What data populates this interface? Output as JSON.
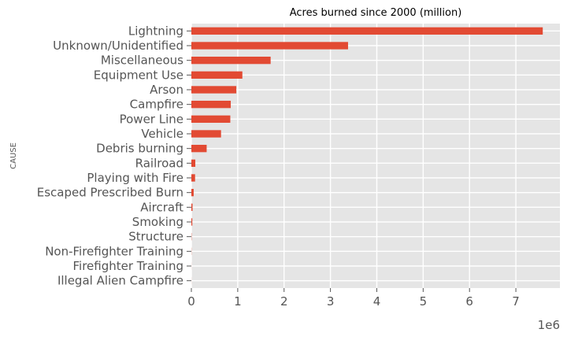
{
  "chart_data": {
    "type": "bar",
    "orientation": "horizontal",
    "title": "Acres burned since 2000 (million)",
    "xlabel": "",
    "ylabel": "CAUSE",
    "x_offset_label": "1e6",
    "xlim": [
      0,
      7.95
    ],
    "x_ticks": [
      0,
      1,
      2,
      3,
      4,
      5,
      6,
      7
    ],
    "grid": true,
    "legend": "none",
    "bar_color": "#E24A33",
    "background_color": "#E5E5E5",
    "categories": [
      "Lightning",
      "Unknown/Unidentified",
      "Miscellaneous",
      "Equipment Use",
      "Arson",
      "Campfire",
      "Power Line",
      "Vehicle",
      "Debris burning",
      "Railroad",
      "Playing with Fire",
      "Escaped Prescribed Burn",
      "Aircraft",
      "Smoking",
      "Structure",
      "Non-Firefighter Training",
      "Firefighter Training",
      "Illegal Alien Campfire"
    ],
    "values": [
      7.58,
      3.38,
      1.71,
      1.1,
      0.97,
      0.85,
      0.84,
      0.64,
      0.33,
      0.085,
      0.08,
      0.05,
      0.025,
      0.02,
      0.005,
      0.003,
      0.001,
      0.001
    ]
  }
}
